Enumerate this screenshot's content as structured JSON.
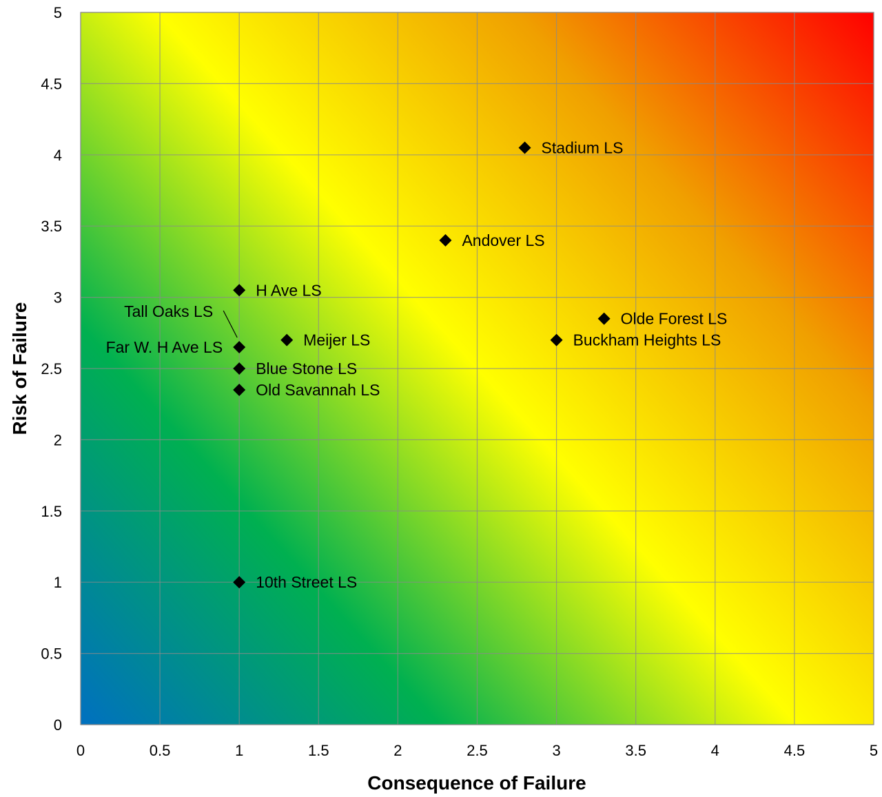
{
  "chart_data": {
    "type": "scatter",
    "title": "",
    "xlabel": "Consequence of Failure",
    "ylabel": "Risk of Failure",
    "xlim": [
      0,
      5
    ],
    "ylim": [
      0,
      5
    ],
    "x_ticks": [
      "0",
      "0.5",
      "1",
      "1.5",
      "2",
      "2.5",
      "3",
      "3.5",
      "4",
      "4.5",
      "5"
    ],
    "y_ticks": [
      "0",
      "0.5",
      "1",
      "1.5",
      "2",
      "2.5",
      "3",
      "3.5",
      "4",
      "4.5",
      "5"
    ],
    "grid": true,
    "background": "diagonal gradient from blue at origin through green and yellow to red at top-right",
    "gradient_colors": [
      "#0070c0",
      "#00b050",
      "#ffff00",
      "#ffc000",
      "#ff0000"
    ],
    "marker": "diamond",
    "marker_color": "#000000",
    "points": [
      {
        "label": "Stadium LS",
        "x": 2.8,
        "y": 4.05
      },
      {
        "label": "Andover LS",
        "x": 2.3,
        "y": 3.4
      },
      {
        "label": "H Ave LS",
        "x": 1.0,
        "y": 3.05
      },
      {
        "label": "Olde Forest LS",
        "x": 3.3,
        "y": 2.85
      },
      {
        "label": "Buckham Heights LS",
        "x": 3.0,
        "y": 2.7
      },
      {
        "label": "Meijer LS",
        "x": 1.3,
        "y": 2.7
      },
      {
        "label": "Far W. H Ave LS",
        "x": 1.0,
        "y": 2.65
      },
      {
        "label": "Tall Oaks LS",
        "x": 1.0,
        "y": 2.65
      },
      {
        "label": "Blue Stone LS",
        "x": 1.0,
        "y": 2.5
      },
      {
        "label": "Old Savannah LS",
        "x": 1.0,
        "y": 2.35
      },
      {
        "label": "10th Street LS",
        "x": 1.0,
        "y": 1.0
      }
    ]
  }
}
